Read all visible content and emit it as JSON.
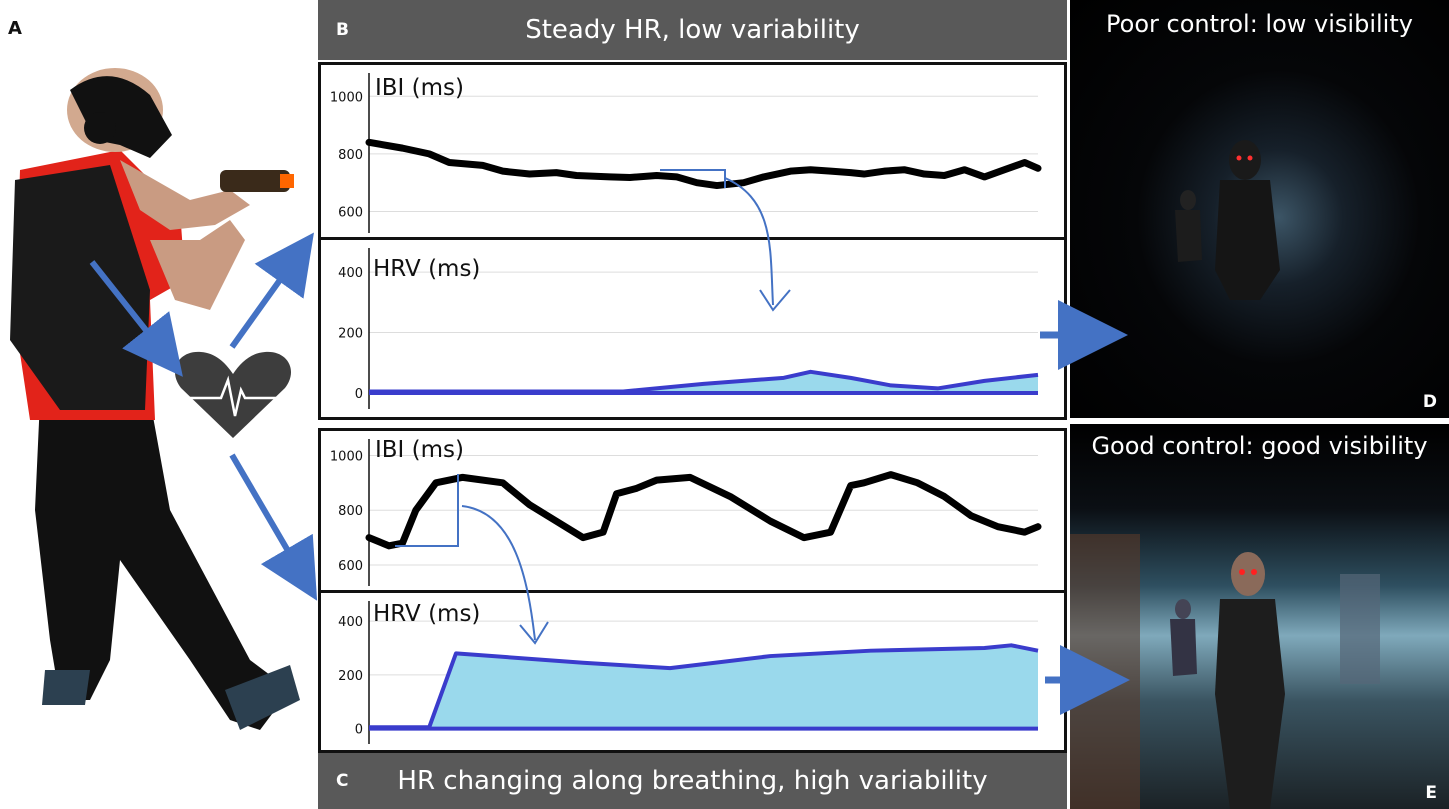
{
  "panel_labels": {
    "a": "A",
    "b": "B",
    "c": "C",
    "d": "D",
    "e": "E"
  },
  "banners": {
    "top": "Steady HR, low variability",
    "bottom": "HR changing along breathing, high variability"
  },
  "scenes": {
    "d_title": "Poor control: low visibility",
    "e_title": "Good control: good visibility"
  },
  "colors": {
    "ibi_line": "#000000",
    "hrv_line": "#3a3ccc",
    "hrv_fill": "#9ad9ec",
    "arrow": "#4472c4",
    "grid": "#dddddd",
    "banner": "#595959"
  },
  "icons": {
    "heart": "heart-pulse-icon",
    "person": "vr-player-figure"
  },
  "chart_data": [
    {
      "id": "b-ibi",
      "type": "line",
      "title": "IBI (ms)",
      "ylabel": "IBI (ms)",
      "ylim": [
        560,
        1060
      ],
      "yticks": [
        600,
        800,
        1000
      ],
      "tick_labels": [
        "600",
        "800",
        "1000"
      ],
      "xlim": [
        0,
        100
      ],
      "grid": true,
      "series": [
        {
          "name": "IBI",
          "x": [
            0,
            5,
            9,
            12,
            17,
            20,
            24,
            28,
            31,
            36,
            39,
            43,
            46,
            49,
            52,
            56,
            59,
            63,
            66,
            69,
            72,
            74,
            77,
            80,
            83,
            86,
            89,
            92,
            95,
            98,
            100
          ],
          "y": [
            840,
            820,
            800,
            770,
            760,
            740,
            730,
            735,
            725,
            720,
            718,
            725,
            720,
            700,
            690,
            700,
            720,
            740,
            745,
            740,
            735,
            730,
            740,
            745,
            730,
            725,
            745,
            720,
            745,
            770,
            750
          ]
        }
      ]
    },
    {
      "id": "b-hrv",
      "type": "area",
      "title": "HRV (ms)",
      "ylabel": "HRV (ms)",
      "ylim": [
        -20,
        460
      ],
      "yticks": [
        0,
        200,
        400
      ],
      "tick_labels": [
        "0",
        "200",
        "400"
      ],
      "xlim": [
        0,
        100
      ],
      "grid": true,
      "series": [
        {
          "name": "HRV",
          "x": [
            0,
            38,
            50,
            62,
            66,
            72,
            78,
            85,
            92,
            100
          ],
          "y": [
            5,
            5,
            30,
            50,
            70,
            50,
            25,
            15,
            40,
            60
          ]
        }
      ]
    },
    {
      "id": "c-ibi",
      "type": "line",
      "title": "IBI (ms)",
      "ylabel": "IBI (ms)",
      "ylim": [
        560,
        1060
      ],
      "yticks": [
        600,
        800,
        1000
      ],
      "tick_labels": [
        "600",
        "800",
        "1000"
      ],
      "xlim": [
        0,
        100
      ],
      "grid": true,
      "series": [
        {
          "name": "IBI",
          "x": [
            0,
            3,
            5,
            7,
            10,
            14,
            20,
            24,
            28,
            32,
            35,
            37,
            40,
            43,
            48,
            54,
            60,
            65,
            69,
            72,
            74,
            78,
            82,
            86,
            90,
            94,
            98,
            100
          ],
          "y": [
            700,
            670,
            680,
            800,
            900,
            920,
            900,
            820,
            760,
            700,
            720,
            860,
            880,
            910,
            920,
            850,
            760,
            700,
            720,
            890,
            900,
            930,
            900,
            850,
            780,
            740,
            720,
            740
          ]
        }
      ]
    },
    {
      "id": "c-hrv",
      "type": "area",
      "title": "HRV (ms)",
      "ylabel": "HRV (ms)",
      "ylim": [
        -20,
        460
      ],
      "yticks": [
        0,
        200,
        400
      ],
      "tick_labels": [
        "0",
        "200",
        "400"
      ],
      "xlim": [
        0,
        100
      ],
      "grid": true,
      "series": [
        {
          "name": "HRV",
          "x": [
            0,
            9,
            13,
            32,
            45,
            60,
            75,
            92,
            96,
            100
          ],
          "y": [
            5,
            5,
            280,
            245,
            225,
            270,
            290,
            300,
            310,
            290
          ]
        }
      ]
    }
  ]
}
